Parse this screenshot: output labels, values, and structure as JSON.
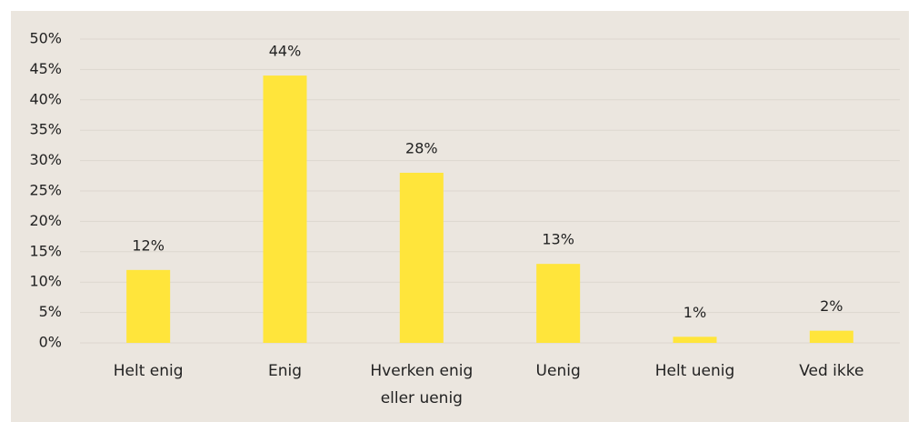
{
  "chart_data": {
    "type": "bar",
    "categories": [
      "Helt enig",
      "Enig",
      "Hverken enig eller uenig",
      "Uenig",
      "Helt uenig",
      "Ved ikke"
    ],
    "values": [
      12,
      44,
      28,
      13,
      1,
      2
    ],
    "value_labels": [
      "12%",
      "44%",
      "28%",
      "13%",
      "1%",
      "2%"
    ],
    "color": "#ffe53b",
    "ylim": [
      0,
      50
    ],
    "yticks": [
      {
        "value": 0,
        "label": "0%"
      },
      {
        "value": 5,
        "label": "5%"
      },
      {
        "value": 10,
        "label": "10%"
      },
      {
        "value": 15,
        "label": "15%"
      },
      {
        "value": 20,
        "label": "20%"
      },
      {
        "value": 25,
        "label": "25%"
      },
      {
        "value": 30,
        "label": "30%"
      },
      {
        "value": 35,
        "label": "35%"
      },
      {
        "value": 40,
        "label": "40%"
      },
      {
        "value": 45,
        "label": "45%"
      },
      {
        "value": 50,
        "label": "50%"
      }
    ],
    "grid": true
  }
}
